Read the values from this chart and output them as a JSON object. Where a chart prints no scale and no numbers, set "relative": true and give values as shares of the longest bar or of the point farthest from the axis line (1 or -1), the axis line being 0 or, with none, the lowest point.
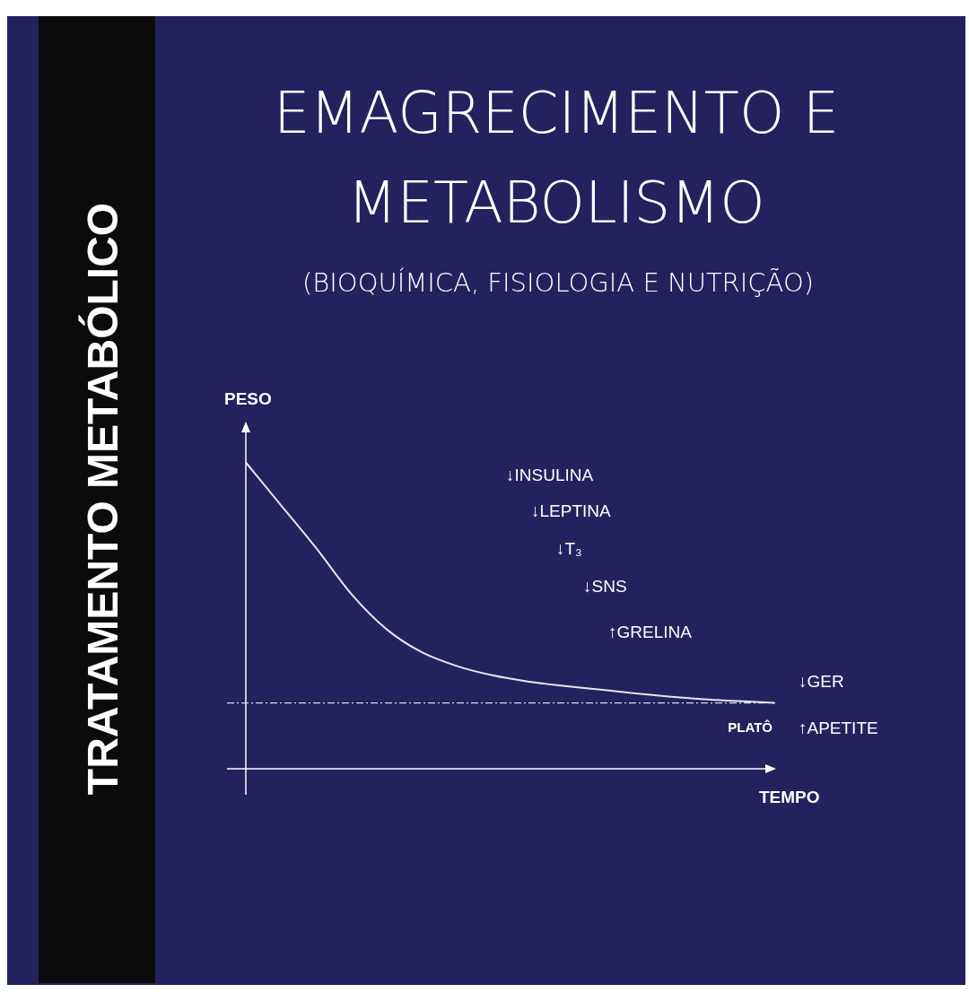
{
  "chart_data": {
    "type": "line",
    "title": "EMAGRECIMENTO E METABOLISMO",
    "subtitle": "(BIOQUÍMICA, FISIOLOGIA E NUTRIÇÃO)",
    "xlabel": "TEMPO",
    "ylabel": "PESO",
    "relative": true,
    "marker": "none",
    "line_style": "solid",
    "categories": [
      null,
      null,
      null,
      null,
      null,
      null,
      null,
      null,
      null,
      null,
      null,
      null,
      null,
      null,
      null,
      null
    ],
    "series": [
      {
        "color": "#e6e6f2",
        "values": [
          1,
          0.86,
          0.72,
          0.57,
          0.455,
          0.38,
          0.335,
          0.305,
          0.285,
          0.271,
          0.259,
          0.247,
          0.236,
          0.227,
          0.221,
          0.215
        ]
      }
    ],
    "ref_lines": [
      {
        "axis": "y",
        "value": 0.215,
        "label": "PLATÔ",
        "line_style": "dashed",
        "color": "#d8d8e8"
      }
    ],
    "annotations": [
      "TRATAMENTO METABÓLICO",
      "↓INSULINA",
      "↓LEPTINA",
      "↓T₃",
      "↓SNS",
      "↑GRELINA",
      "↓GER",
      "↑APETITE"
    ]
  }
}
